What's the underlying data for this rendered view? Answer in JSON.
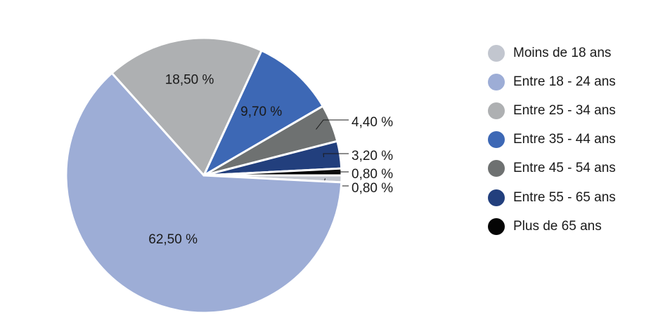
{
  "chart_data": {
    "type": "pie",
    "categories": [
      "Moins de 18 ans",
      "Entre 18 - 24 ans",
      "Entre 25 - 34 ans",
      "Entre 35 - 44 ans",
      "Entre 45 - 54 ans",
      "Entre 55 - 65 ans",
      "Plus de 65 ans"
    ],
    "values": [
      0.8,
      62.5,
      18.5,
      9.7,
      4.4,
      3.2,
      0.8
    ],
    "data_labels": [
      "0,80 %",
      "62,50 %",
      "18,50 %",
      "9,70 %",
      "4,40 %",
      "3,20 %",
      "0,80 %"
    ],
    "colors": [
      "#c2c6cf",
      "#9dadd6",
      "#aeb0b2",
      "#3d68b5",
      "#6e7171",
      "#223f7d",
      "#050505"
    ],
    "legend_position": "right",
    "start_angle_deg": 0,
    "direction": "clockwise"
  }
}
